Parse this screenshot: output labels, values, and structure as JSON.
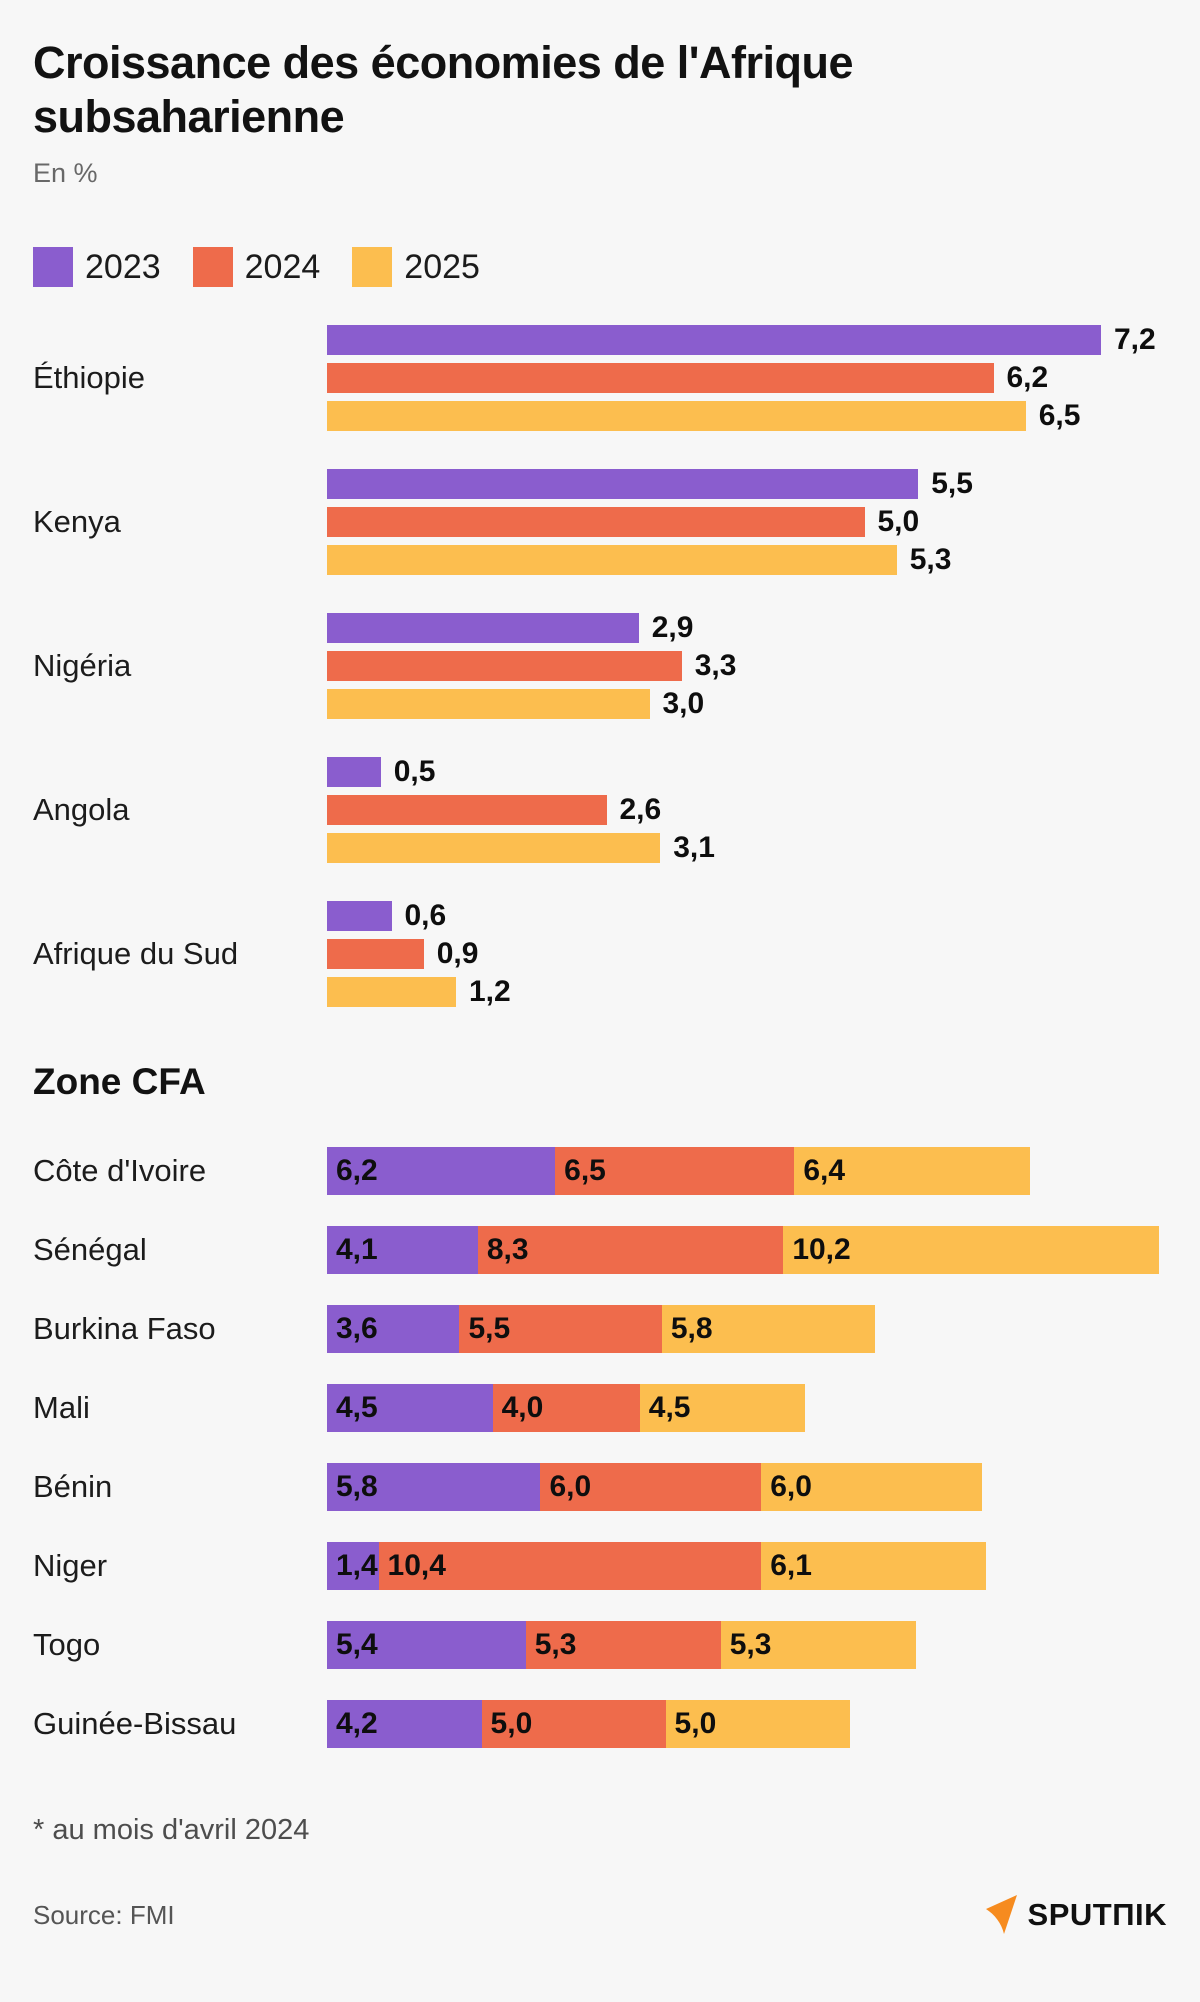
{
  "header": {
    "title": "Croissance des économies de l'Afrique subsaharienne",
    "subtitle": "En %"
  },
  "colors": {
    "background": "#F7F7F7",
    "y2023": "#8A5DCE",
    "y2024": "#EE6B4B",
    "y2025": "#FCBE4F",
    "brand_orange": "#F68B1F",
    "text": "#121212"
  },
  "legend": [
    {
      "label": "2023",
      "color": "#8A5DCE"
    },
    {
      "label": "2024",
      "color": "#EE6B4B"
    },
    {
      "label": "2025",
      "color": "#FCBE4F"
    }
  ],
  "chart_data": [
    {
      "type": "bar",
      "orientation": "horizontal",
      "mode": "grouped",
      "title": "Croissance des économies de l'Afrique subsaharienne",
      "unit": "En %",
      "legend_position": "top",
      "grid": false,
      "value_label_position": "outside-right",
      "categories": [
        "Éthiopie",
        "Kenya",
        "Nigéria",
        "Angola",
        "Afrique du Sud"
      ],
      "series": [
        {
          "name": "2023",
          "color": "#8A5DCE",
          "values": [
            7.2,
            5.5,
            2.9,
            0.5,
            0.6
          ],
          "labels": [
            "7,2",
            "5,5",
            "2,9",
            "0,5",
            "0,6"
          ]
        },
        {
          "name": "2024",
          "color": "#EE6B4B",
          "values": [
            6.2,
            5.0,
            3.3,
            2.6,
            0.9
          ],
          "labels": [
            "6,2",
            "5,0",
            "3,3",
            "2,6",
            "0,9"
          ]
        },
        {
          "name": "2025",
          "color": "#FCBE4F",
          "values": [
            6.5,
            5.3,
            3.0,
            3.1,
            1.2
          ],
          "labels": [
            "6,5",
            "5,3",
            "3,0",
            "3,1",
            "1,2"
          ]
        }
      ],
      "xlim": [
        0,
        7.2
      ]
    },
    {
      "type": "bar",
      "orientation": "horizontal",
      "mode": "stacked",
      "title": "Zone CFA",
      "unit": "En %",
      "grid": false,
      "value_label_position": "inside-left",
      "categories": [
        "Côte d'Ivoire",
        "Sénégal",
        "Burkina Faso",
        "Mali",
        "Bénin",
        "Niger",
        "Togo",
        "Guinée-Bissau"
      ],
      "series": [
        {
          "name": "2023",
          "color": "#8A5DCE",
          "values": [
            6.2,
            4.1,
            3.6,
            4.5,
            5.8,
            1.4,
            5.4,
            4.2
          ],
          "labels": [
            "6,2",
            "4,1",
            "3,6",
            "4,5",
            "5,8",
            "1,4",
            "5,4",
            "4,2"
          ]
        },
        {
          "name": "2024",
          "color": "#EE6B4B",
          "values": [
            6.5,
            8.3,
            5.5,
            4.0,
            6.0,
            10.4,
            5.3,
            5.0
          ],
          "labels": [
            "6,5",
            "8,3",
            "5,5",
            "4,0",
            "6,0",
            "10,4",
            "5,3",
            "5,0"
          ]
        },
        {
          "name": "2025",
          "color": "#FCBE4F",
          "values": [
            6.4,
            10.2,
            5.8,
            4.5,
            6.0,
            6.1,
            5.3,
            5.0
          ],
          "labels": [
            "6,4",
            "10,2",
            "5,8",
            "4,5",
            "6,0",
            "6,1",
            "5,3",
            "5,0"
          ]
        }
      ],
      "stacked_total_max": 22.6
    }
  ],
  "section_title": "Zone CFA",
  "footnote": "* au mois d'avril 2024",
  "footer": {
    "source": "Source: FMI",
    "brand": "SPUTПIK"
  }
}
